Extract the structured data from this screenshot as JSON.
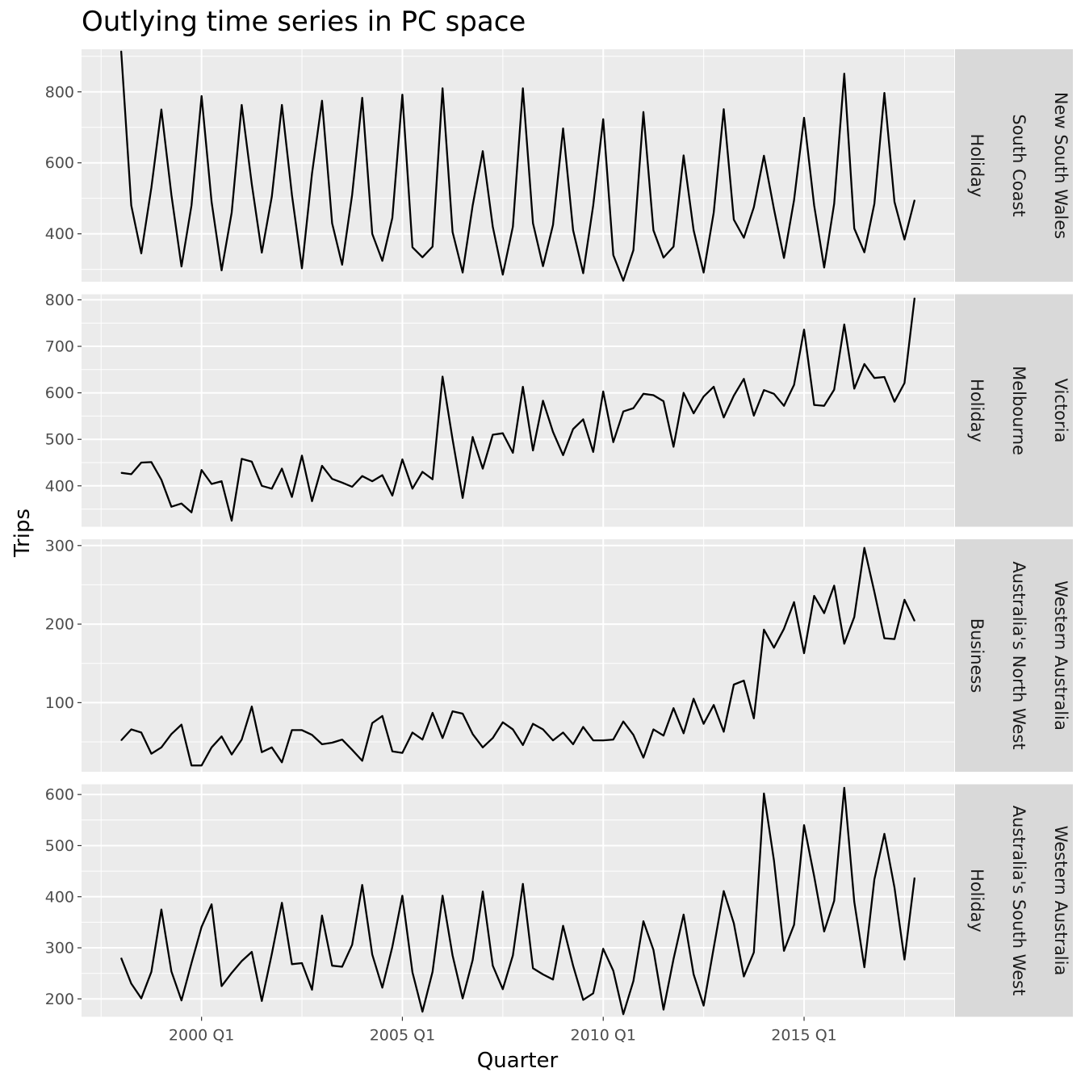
{
  "chart_data": {
    "type": "line",
    "title": "Outlying time series in PC space",
    "xlabel": "Quarter",
    "ylabel": "Trips",
    "x_start": "1998 Q1",
    "x_end": "2017 Q4",
    "x_ticks": [
      {
        "label": "2000 Q1",
        "value": "2000 Q1"
      },
      {
        "label": "2005 Q1",
        "value": "2005 Q1"
      },
      {
        "label": "2010 Q1",
        "value": "2010 Q1"
      },
      {
        "label": "2015 Q1",
        "value": "2015 Q1"
      }
    ],
    "grid": true,
    "facets": "rows",
    "panels": [
      {
        "strips": [
          "New South Wales",
          "South Coast",
          "Holiday"
        ],
        "ylim": [
          265,
          920
        ],
        "yticks": [
          400,
          600,
          800
        ],
        "values": [
          915,
          480,
          345,
          530,
          750,
          510,
          308,
          480,
          788,
          490,
          297,
          460,
          763,
          540,
          347,
          505,
          763,
          510,
          303,
          570,
          775,
          430,
          313,
          510,
          783,
          400,
          324,
          445,
          792,
          362,
          334,
          364,
          810,
          405,
          291,
          480,
          633,
          420,
          285,
          420,
          810,
          430,
          309,
          425,
          697,
          410,
          289,
          480,
          723,
          340,
          268,
          354,
          743,
          410,
          333,
          364,
          621,
          410,
          291,
          460,
          751,
          440,
          389,
          475,
          620,
          470,
          332,
          495,
          727,
          480,
          305,
          485,
          851,
          415,
          348,
          485,
          797,
          490,
          384,
          495
        ]
      },
      {
        "strips": [
          "Victoria",
          "Melbourne",
          "Holiday"
        ],
        "ylim": [
          312,
          812
        ],
        "yticks": [
          400,
          500,
          600,
          700,
          800
        ],
        "values": [
          428,
          425,
          450,
          451,
          413,
          355,
          362,
          343,
          434,
          404,
          410,
          325,
          458,
          452,
          400,
          394,
          437,
          376,
          465,
          367,
          443,
          415,
          407,
          398,
          421,
          410,
          423,
          379,
          457,
          394,
          430,
          414,
          635,
          500,
          374,
          505,
          437,
          510,
          513,
          471,
          613,
          476,
          583,
          516,
          466,
          522,
          543,
          473,
          603,
          494,
          560,
          567,
          598,
          595,
          582,
          484,
          600,
          556,
          592,
          613,
          547,
          594,
          630,
          551,
          606,
          598,
          572,
          617,
          736,
          574,
          572,
          607,
          747,
          609,
          662,
          632,
          634,
          581,
          621,
          804
        ]
      },
      {
        "strips": [
          "Western Australia",
          "Australia's North West",
          "Business"
        ],
        "ylim": [
          12,
          308
        ],
        "yticks": [
          100,
          200,
          300
        ],
        "values": [
          52,
          66,
          62,
          35,
          43,
          60,
          72,
          20,
          20,
          43,
          57,
          34,
          53,
          95,
          37,
          43,
          24,
          65,
          65,
          59,
          47,
          49,
          53,
          40,
          26,
          74,
          83,
          38,
          36,
          62,
          53,
          87,
          55,
          89,
          86,
          60,
          43,
          55,
          75,
          66,
          46,
          73,
          66,
          52,
          62,
          47,
          69,
          52,
          52,
          53,
          76,
          59,
          30,
          66,
          58,
          93,
          61,
          105,
          73,
          97,
          63,
          123,
          128,
          80,
          193,
          170,
          194,
          228,
          163,
          236,
          214,
          249,
          175,
          209,
          297,
          241,
          182,
          181,
          231,
          204
        ]
      },
      {
        "strips": [
          "Western Australia",
          "Australia's South West",
          "Holiday"
        ],
        "ylim": [
          165,
          620
        ],
        "yticks": [
          200,
          300,
          400,
          500,
          600
        ],
        "values": [
          280,
          230,
          201,
          253,
          375,
          254,
          197,
          270,
          341,
          385,
          225,
          251,
          274,
          292,
          196,
          288,
          388,
          268,
          270,
          218,
          363,
          265,
          263,
          306,
          423,
          287,
          222,
          302,
          402,
          252,
          175,
          253,
          402,
          285,
          201,
          276,
          410,
          265,
          219,
          285,
          425,
          260,
          248,
          238,
          343,
          265,
          198,
          211,
          298,
          255,
          170,
          235,
          352,
          296,
          179,
          278,
          365,
          248,
          187,
          300,
          411,
          348,
          244,
          291,
          602,
          471,
          294,
          345,
          540,
          440,
          332,
          392,
          613,
          390,
          262,
          434,
          523,
          418,
          277,
          437
        ]
      }
    ]
  }
}
